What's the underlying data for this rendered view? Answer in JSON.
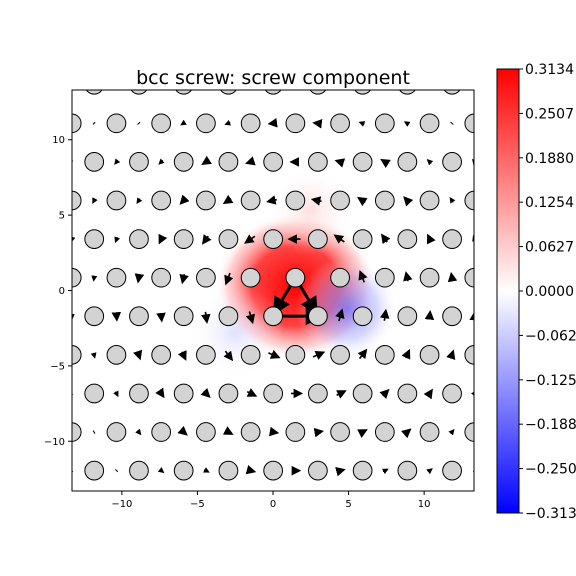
{
  "chart_data": {
    "type": "heatmap",
    "title": "bcc screw: screw component",
    "xlabel": "",
    "ylabel": "",
    "xlim": [
      -13.3,
      13.3
    ],
    "ylim": [
      -13.3,
      13.3
    ],
    "x_ticks": [
      -10,
      -5,
      0,
      5,
      10
    ],
    "x_tick_labels": [
      "−10",
      "−5",
      "0",
      "5",
      "10"
    ],
    "y_ticks": [
      10,
      5,
      0,
      -5,
      -10
    ],
    "y_tick_labels": [
      "10",
      "5",
      "0",
      "−5",
      "−10"
    ],
    "colormap": "bwr",
    "colorbar": {
      "vmin": -0.3134,
      "vmax": 0.3134,
      "ticks": [
        0.3134,
        0.2507,
        0.188,
        0.1254,
        0.0627,
        0.0,
        -0.0627,
        -0.1254,
        -0.188,
        -0.2507,
        -0.3134
      ],
      "tick_labels": [
        "0.3134",
        "0.2507",
        "0.1880",
        "0.1254",
        "0.0627",
        "0.0000",
        "−0.0627",
        "−0.1254",
        "−0.1880",
        "−0.2507",
        "−0.3134"
      ]
    },
    "field_peaks": [
      {
        "x": 1.5,
        "y": 0.3,
        "value": 0.3134
      },
      {
        "x": 4.9,
        "y": -1.2,
        "value": -0.16
      },
      {
        "x": -2.5,
        "y": -2.8,
        "value": -0.06
      },
      {
        "x": 2.5,
        "y": 5.3,
        "value": 0.05
      }
    ],
    "atom_spacing": {
      "dx": 2.96,
      "dy": 2.56,
      "row_shift": 1.49
    },
    "atom_origin": {
      "x": 1.48,
      "y": 0.85
    },
    "core_arrows": [
      {
        "from": [
          0.0,
          -1.7
        ],
        "to": [
          2.96,
          -1.7
        ],
        "magnitude": 1.0
      },
      {
        "from": [
          1.48,
          0.85
        ],
        "to": [
          0.2,
          -1.3
        ],
        "magnitude": 1.0
      },
      {
        "from": [
          1.48,
          0.85
        ],
        "to": [
          2.76,
          -1.3
        ],
        "magnitude": 1.0
      }
    ],
    "colors": {
      "atom_fill": "#d3d3d3",
      "atom_edge": "#000000",
      "arrow": "#000000"
    }
  }
}
